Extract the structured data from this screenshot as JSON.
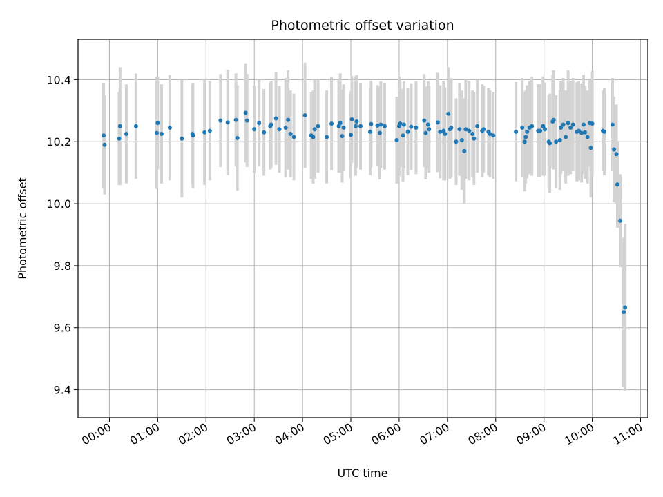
{
  "chart_data": {
    "type": "scatter",
    "title": "Photometric offset variation",
    "xlabel": "UTC time",
    "ylabel": "Photometric offset",
    "x_unit": "hours after 00:00 UTC",
    "xlim": [
      -0.65,
      11.15
    ],
    "ylim": [
      9.31,
      10.53
    ],
    "grid": true,
    "x_ticks": [
      {
        "value": 0,
        "label": "00:00"
      },
      {
        "value": 1,
        "label": "01:00"
      },
      {
        "value": 2,
        "label": "02:00"
      },
      {
        "value": 3,
        "label": "03:00"
      },
      {
        "value": 4,
        "label": "04:00"
      },
      {
        "value": 5,
        "label": "05:00"
      },
      {
        "value": 6,
        "label": "06:00"
      },
      {
        "value": 7,
        "label": "07:00"
      },
      {
        "value": 8,
        "label": "08:00"
      },
      {
        "value": 9,
        "label": "09:00"
      },
      {
        "value": 10,
        "label": "10:00"
      },
      {
        "value": 11,
        "label": "11:00"
      }
    ],
    "y_ticks": [
      {
        "value": 9.4,
        "label": "9.4"
      },
      {
        "value": 9.6,
        "label": "9.6"
      },
      {
        "value": 9.8,
        "label": "9.8"
      },
      {
        "value": 10.0,
        "label": "10.0"
      },
      {
        "value": 10.2,
        "label": "10.2"
      },
      {
        "value": 10.4,
        "label": "10.4"
      }
    ],
    "colors": {
      "marker": "#1f77b4",
      "errorbar": "#d3d3d3",
      "grid": "#b0b0b0",
      "axes": "#000000"
    },
    "series": [
      {
        "name": "Photometric offset",
        "points": [
          [
            -0.12,
            10.22,
            0.17
          ],
          [
            -0.1,
            10.19,
            0.16
          ],
          [
            0.2,
            10.21,
            0.15
          ],
          [
            0.22,
            10.25,
            0.19
          ],
          [
            0.35,
            10.225,
            0.16
          ],
          [
            0.55,
            10.25,
            0.17
          ],
          [
            0.98,
            10.228,
            0.18
          ],
          [
            1.0,
            10.26,
            0.15
          ],
          [
            1.08,
            10.225,
            0.16
          ],
          [
            1.25,
            10.245,
            0.17
          ],
          [
            1.5,
            10.21,
            0.19
          ],
          [
            1.72,
            10.225,
            0.16
          ],
          [
            1.73,
            10.22,
            0.17
          ],
          [
            1.97,
            10.23,
            0.17
          ],
          [
            2.08,
            10.235,
            0.16
          ],
          [
            2.3,
            10.268,
            0.15
          ],
          [
            2.45,
            10.262,
            0.17
          ],
          [
            2.62,
            10.27,
            0.15
          ],
          [
            2.65,
            10.212,
            0.17
          ],
          [
            2.82,
            10.293,
            0.16
          ],
          [
            2.85,
            10.268,
            0.15
          ],
          [
            3.0,
            10.24,
            0.14
          ],
          [
            3.1,
            10.26,
            0.14
          ],
          [
            3.2,
            10.23,
            0.14
          ],
          [
            3.33,
            10.25,
            0.14
          ],
          [
            3.35,
            10.255,
            0.14
          ],
          [
            3.45,
            10.275,
            0.15
          ],
          [
            3.52,
            10.24,
            0.14
          ],
          [
            3.65,
            10.245,
            0.16
          ],
          [
            3.7,
            10.27,
            0.16
          ],
          [
            3.75,
            10.225,
            0.14
          ],
          [
            3.82,
            10.215,
            0.14
          ],
          [
            4.05,
            10.285,
            0.17
          ],
          [
            4.18,
            10.22,
            0.14
          ],
          [
            4.22,
            10.215,
            0.15
          ],
          [
            4.25,
            10.24,
            0.16
          ],
          [
            4.32,
            10.25,
            0.15
          ],
          [
            4.5,
            10.215,
            0.15
          ],
          [
            4.6,
            10.258,
            0.15
          ],
          [
            4.75,
            10.25,
            0.15
          ],
          [
            4.78,
            10.26,
            0.16
          ],
          [
            4.82,
            10.218,
            0.15
          ],
          [
            4.85,
            10.245,
            0.14
          ],
          [
            5.0,
            10.222,
            0.14
          ],
          [
            5.02,
            10.272,
            0.14
          ],
          [
            5.1,
            10.25,
            0.16
          ],
          [
            5.12,
            10.265,
            0.15
          ],
          [
            5.2,
            10.25,
            0.14
          ],
          [
            5.4,
            10.232,
            0.14
          ],
          [
            5.42,
            10.257,
            0.14
          ],
          [
            5.55,
            10.252,
            0.13
          ],
          [
            5.6,
            10.228,
            0.15
          ],
          [
            5.62,
            10.255,
            0.14
          ],
          [
            5.7,
            10.25,
            0.14
          ],
          [
            5.95,
            10.205,
            0.14
          ],
          [
            6.0,
            10.25,
            0.16
          ],
          [
            6.02,
            10.258,
            0.14
          ],
          [
            6.08,
            10.22,
            0.15
          ],
          [
            6.1,
            10.255,
            0.14
          ],
          [
            6.18,
            10.232,
            0.14
          ],
          [
            6.25,
            10.248,
            0.14
          ],
          [
            6.35,
            10.245,
            0.15
          ],
          [
            6.52,
            10.268,
            0.15
          ],
          [
            6.55,
            10.228,
            0.15
          ],
          [
            6.6,
            10.255,
            0.14
          ],
          [
            6.62,
            10.24,
            0.14
          ],
          [
            6.8,
            10.262,
            0.16
          ],
          [
            6.85,
            10.232,
            0.15
          ],
          [
            6.92,
            10.235,
            0.16
          ],
          [
            6.95,
            10.225,
            0.15
          ],
          [
            7.02,
            10.29,
            0.15
          ],
          [
            7.05,
            10.24,
            0.16
          ],
          [
            7.08,
            10.245,
            0.16
          ],
          [
            7.18,
            10.2,
            0.14
          ],
          [
            7.25,
            10.24,
            0.15
          ],
          [
            7.3,
            10.205,
            0.16
          ],
          [
            7.35,
            10.17,
            0.17
          ],
          [
            7.38,
            10.24,
            0.16
          ],
          [
            7.45,
            10.235,
            0.16
          ],
          [
            7.52,
            10.225,
            0.14
          ],
          [
            7.55,
            10.21,
            0.15
          ],
          [
            7.62,
            10.25,
            0.15
          ],
          [
            7.72,
            10.235,
            0.15
          ],
          [
            7.75,
            10.24,
            0.14
          ],
          [
            7.85,
            10.232,
            0.14
          ],
          [
            7.88,
            10.225,
            0.14
          ],
          [
            7.95,
            10.22,
            0.14
          ],
          [
            8.42,
            10.232,
            0.16
          ],
          [
            8.55,
            10.245,
            0.16
          ],
          [
            8.6,
            10.2,
            0.16
          ],
          [
            8.62,
            10.215,
            0.15
          ],
          [
            8.65,
            10.232,
            0.15
          ],
          [
            8.7,
            10.245,
            0.15
          ],
          [
            8.75,
            10.25,
            0.16
          ],
          [
            8.88,
            10.235,
            0.15
          ],
          [
            8.92,
            10.235,
            0.15
          ],
          [
            8.98,
            10.25,
            0.16
          ],
          [
            9.02,
            10.24,
            0.15
          ],
          [
            9.1,
            10.2,
            0.15
          ],
          [
            9.12,
            10.195,
            0.16
          ],
          [
            9.18,
            10.265,
            0.15
          ],
          [
            9.2,
            10.27,
            0.16
          ],
          [
            9.25,
            10.2,
            0.15
          ],
          [
            9.33,
            10.205,
            0.16
          ],
          [
            9.35,
            10.245,
            0.15
          ],
          [
            9.4,
            10.255,
            0.15
          ],
          [
            9.45,
            10.215,
            0.15
          ],
          [
            9.5,
            10.26,
            0.17
          ],
          [
            9.55,
            10.245,
            0.15
          ],
          [
            9.6,
            10.255,
            0.15
          ],
          [
            9.68,
            10.232,
            0.16
          ],
          [
            9.72,
            10.235,
            0.16
          ],
          [
            9.78,
            10.228,
            0.16
          ],
          [
            9.82,
            10.255,
            0.16
          ],
          [
            9.85,
            10.23,
            0.15
          ],
          [
            9.9,
            10.215,
            0.15
          ],
          [
            9.95,
            10.26,
            0.14
          ],
          [
            9.97,
            10.18,
            0.16
          ],
          [
            10.0,
            10.258,
            0.17
          ],
          [
            10.22,
            10.235,
            0.13
          ],
          [
            10.25,
            10.232,
            0.14
          ],
          [
            10.42,
            10.255,
            0.15
          ],
          [
            10.45,
            10.175,
            0.17
          ],
          [
            10.5,
            10.16,
            0.16
          ],
          [
            10.52,
            10.062,
            0.14
          ],
          [
            10.58,
            9.945,
            0.15
          ],
          [
            10.65,
            9.65,
            0.24
          ],
          [
            10.68,
            9.665,
            0.27
          ]
        ]
      }
    ]
  }
}
